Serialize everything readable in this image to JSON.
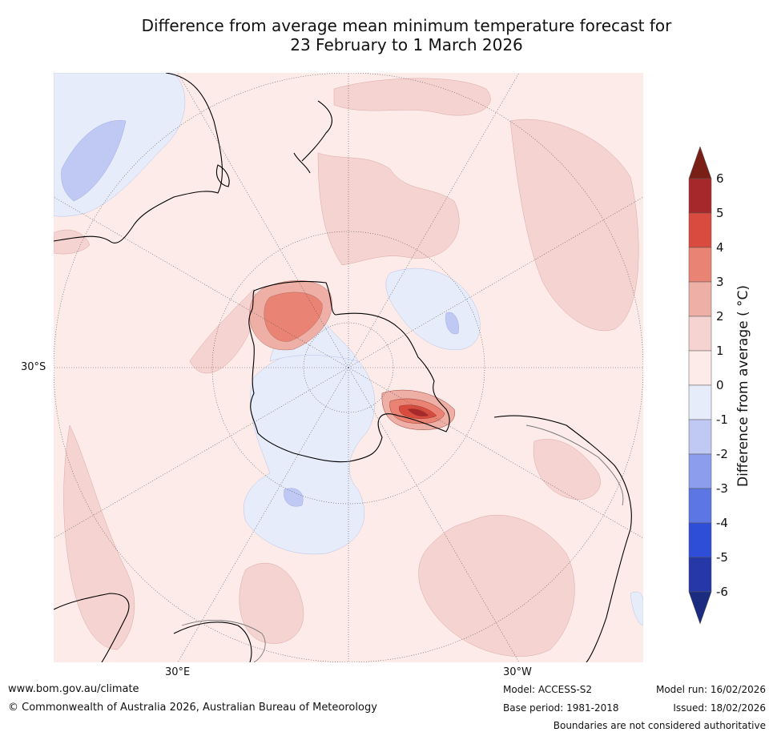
{
  "title": {
    "line1": "Difference from average mean minimum temperature forecast for",
    "line2": "23 February to 1 March 2026"
  },
  "map": {
    "projection": "south-polar-stereographic",
    "lat_label": "30°S",
    "lon_labels": {
      "left": "30°E",
      "right": "30°W"
    },
    "regions": [
      "Antarctica",
      "Australia",
      "New Zealand",
      "South America",
      "Southern Africa"
    ],
    "anomaly_hotspots": [
      {
        "name": "east-antarctica-coast-warm",
        "value_range": "2 to 4"
      },
      {
        "name": "antarctic-peninsula-warm",
        "value_range": "3 to 5"
      }
    ]
  },
  "colorbar": {
    "title": "Difference from average (°C)",
    "title_text": "Difference from average ( °C)",
    "levels": [
      "6",
      "5",
      "4",
      "3",
      "2",
      "1",
      "0",
      "-1",
      "-2",
      "-3",
      "-4",
      "-5",
      "-6"
    ],
    "colors": {
      "above6": "#7a1f16",
      "5to6": "#a7282a",
      "4to5": "#d84b3e",
      "3to4": "#e98373",
      "2to3": "#eeb0a6",
      "1to2": "#f5d3d0",
      "0to1": "#fcebe9",
      "m1to0": "#e7ecfb",
      "m2tom1": "#c0c8f4",
      "m3tom2": "#8c9ded",
      "m4tom3": "#5c76e4",
      "m5tom4": "#2f4ed8",
      "m6tom5": "#2637a8",
      "below_m6": "#1b2c80"
    }
  },
  "footer": {
    "website": "www.bom.gov.au/climate",
    "copyright": "© Commonwealth of Australia 2026, Australian Bureau of Meteorology",
    "model": "Model: ACCESS-S2",
    "base_period": "Base period: 1981-2018",
    "model_run": "Model run: 16/02/2026",
    "issued": "Issued: 18/02/2026",
    "disclaimer": "Boundaries are not considered authoritative"
  }
}
